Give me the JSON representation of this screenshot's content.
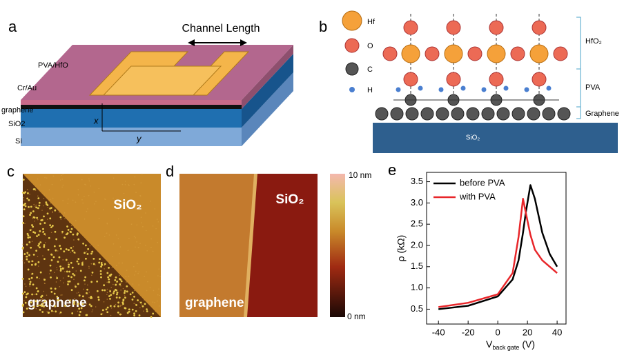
{
  "panels": {
    "a": {
      "letter": "a",
      "channel_length": "Channel Length",
      "labels": [
        "PVA/HfO",
        "Cr/Au",
        "graphene",
        "SiO2",
        "Si"
      ],
      "axes": [
        "x",
        "y"
      ]
    },
    "b": {
      "letter": "b",
      "legend": [
        "Hf",
        "O",
        "C",
        "H"
      ],
      "layers": [
        "HfO₂",
        "PVA",
        "Graphene"
      ],
      "substrate": "SiO₂"
    },
    "c": {
      "letter": "c",
      "region_top": "SiO₂",
      "region_bottom": "graphene"
    },
    "d": {
      "letter": "d",
      "region_top": "SiO₂",
      "region_bottom": "graphene",
      "colorbar_max": "10 nm",
      "colorbar_min": "0 nm"
    }
  },
  "chart_data": {
    "type": "line",
    "panel_letter": "e",
    "x_label": "V",
    "x_label_sub": "back gate",
    "x_label_unit": "(V)",
    "y_label": "ρ (kΩ)",
    "x": [
      -40,
      -20,
      0,
      10,
      14,
      17,
      19,
      22,
      25,
      30,
      35,
      40
    ],
    "series": [
      {
        "name": "before PVA",
        "color": "#000000",
        "values": [
          0.5,
          0.58,
          0.8,
          1.2,
          1.65,
          2.3,
          2.8,
          3.42,
          3.1,
          2.3,
          1.8,
          1.5
        ]
      },
      {
        "name": "with PVA",
        "color": "#e8262a",
        "values": [
          0.55,
          0.65,
          0.85,
          1.35,
          2.2,
          3.1,
          2.75,
          2.25,
          1.9,
          1.65,
          1.5,
          1.35
        ]
      }
    ],
    "xlim": [
      -48,
      46
    ],
    "ylim": [
      0.15,
      3.72
    ],
    "xticks": [
      -40,
      -20,
      0,
      20,
      40
    ],
    "yticks": [
      0.5,
      1.0,
      1.5,
      2.0,
      2.5,
      3.0,
      3.5
    ]
  }
}
